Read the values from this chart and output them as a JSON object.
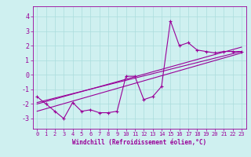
{
  "xlabel": "Windchill (Refroidissement éolien,°C)",
  "background_color": "#cff0f0",
  "grid_color": "#aadddd",
  "line_color": "#990099",
  "xlim": [
    -0.5,
    23.5
  ],
  "ylim": [
    -3.7,
    4.7
  ],
  "yticks": [
    -3,
    -2,
    -1,
    0,
    1,
    2,
    3,
    4
  ],
  "xticks": [
    0,
    1,
    2,
    3,
    4,
    5,
    6,
    7,
    8,
    9,
    10,
    11,
    12,
    13,
    14,
    15,
    16,
    17,
    18,
    19,
    20,
    21,
    22,
    23
  ],
  "series1_x": [
    0,
    1,
    2,
    3,
    4,
    5,
    6,
    7,
    8,
    9,
    10,
    11,
    12,
    13,
    14,
    15,
    16,
    17,
    18,
    19,
    20,
    21,
    22,
    23
  ],
  "series1_y": [
    -1.5,
    -2.0,
    -2.5,
    -3.0,
    -1.9,
    -2.5,
    -2.4,
    -2.6,
    -2.6,
    -2.5,
    -0.1,
    -0.1,
    -1.7,
    -1.5,
    -0.8,
    3.7,
    2.0,
    2.2,
    1.7,
    1.6,
    1.5,
    1.6,
    1.6,
    1.6
  ],
  "series2_x": [
    0,
    23
  ],
  "series2_y": [
    -1.9,
    1.6
  ],
  "series3_x": [
    0,
    23
  ],
  "series3_y": [
    -2.5,
    1.5
  ],
  "series4_x": [
    0,
    23
  ],
  "series4_y": [
    -2.0,
    1.9
  ],
  "tick_fontsize": 5,
  "xlabel_fontsize": 5.5,
  "linewidth": 0.8,
  "marker_size": 3
}
